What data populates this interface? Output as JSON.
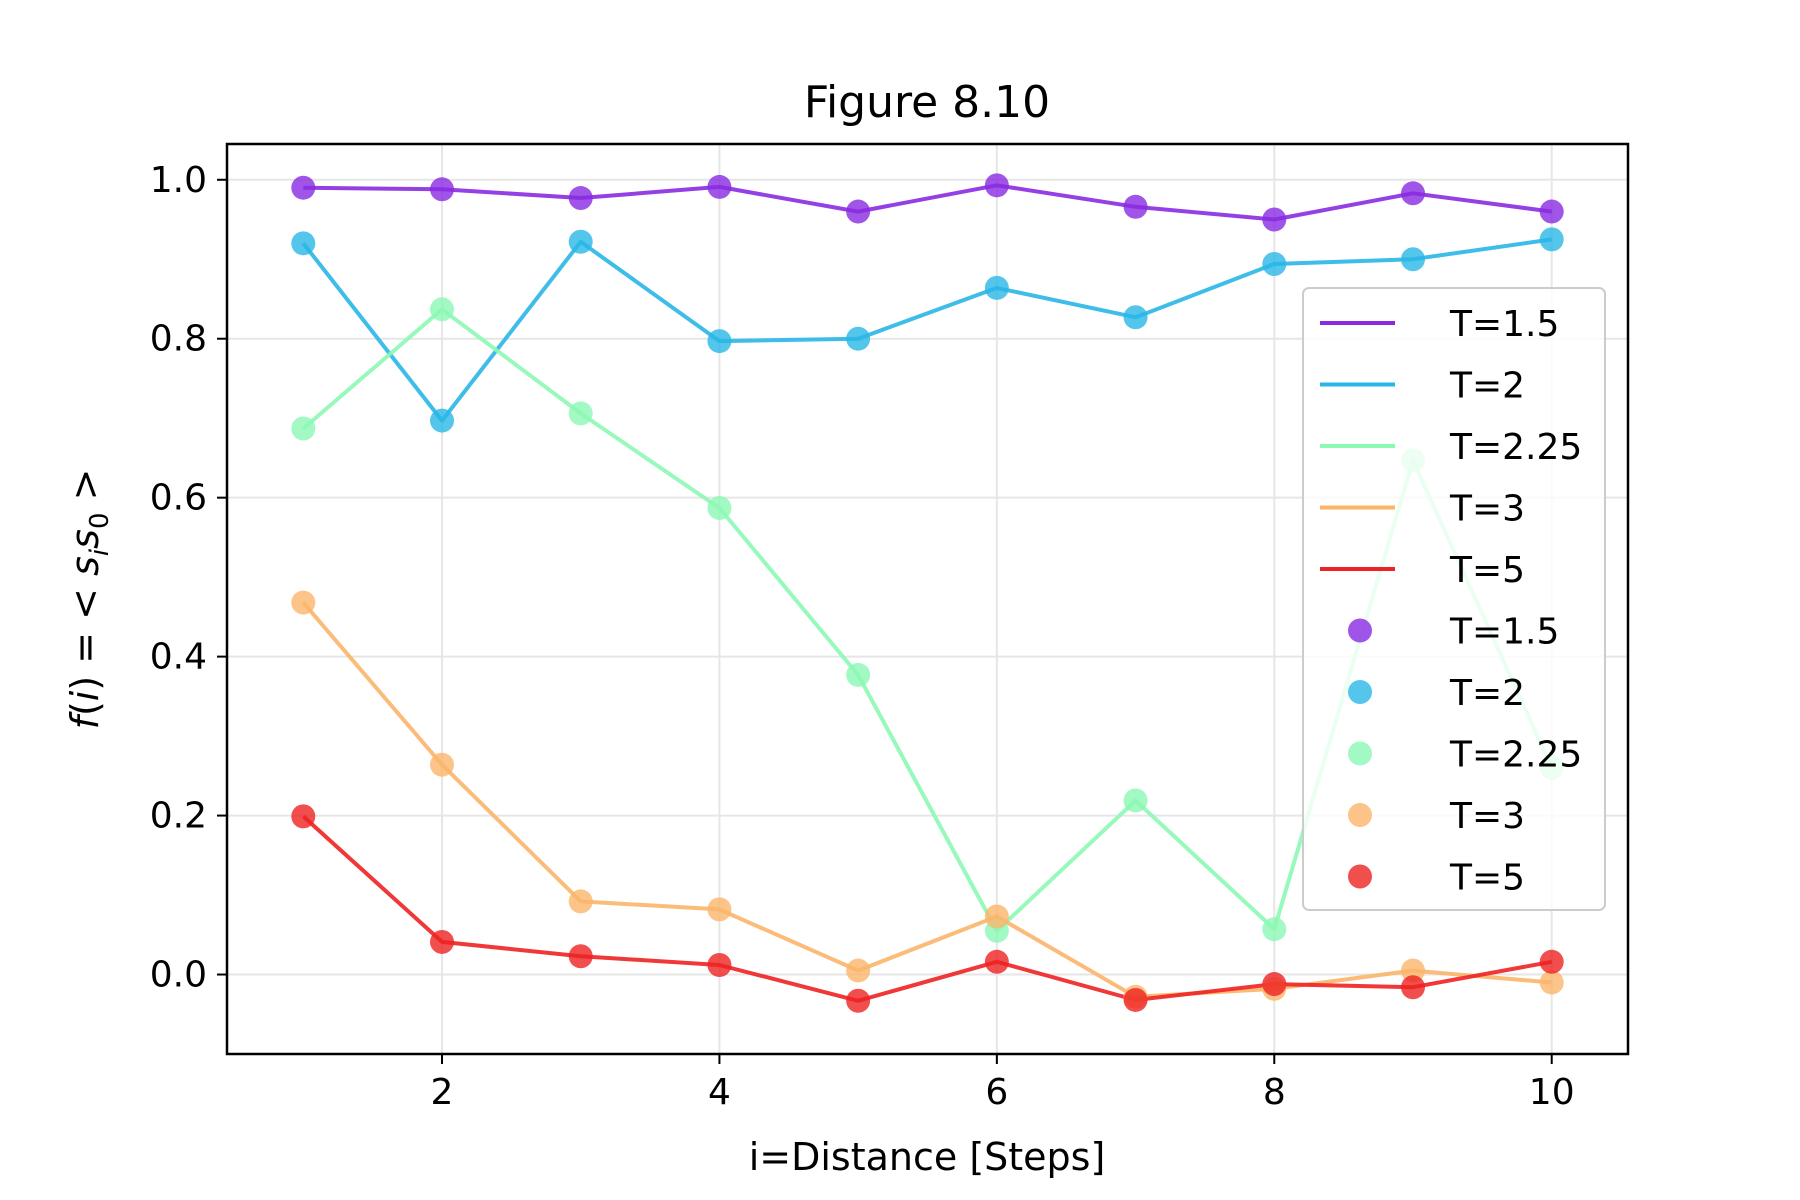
{
  "chart_data": {
    "type": "line",
    "title": "Figure 8.10",
    "xlabel": "i=Distance [Steps]",
    "ylabel": "f(i) = < s_i s_0 >",
    "ylabel_parts": {
      "f": "f",
      "open": "(",
      "i": "i",
      "close": ")",
      "eq": " = < ",
      "s1": "s",
      "sub1": "i",
      "s2": "s",
      "sub2": "0",
      "end": " >"
    },
    "xlim": [
      0.45,
      10.55
    ],
    "ylim": [
      -0.1,
      1.045
    ],
    "xticks": [
      2,
      4,
      6,
      8,
      10
    ],
    "yticks": [
      0.0,
      0.2,
      0.4,
      0.6,
      0.8,
      1.0
    ],
    "ytick_labels": [
      "0.0",
      "0.2",
      "0.4",
      "0.6",
      "0.8",
      "1.0"
    ],
    "grid": true,
    "legend_position": "center-right",
    "x": [
      1,
      2,
      3,
      4,
      5,
      6,
      7,
      8,
      9,
      10
    ],
    "series": [
      {
        "name": "T=1.5",
        "color": "#8a2be2",
        "values": [
          0.99,
          0.988,
          0.977,
          0.991,
          0.96,
          0.993,
          0.966,
          0.95,
          0.983,
          0.96
        ]
      },
      {
        "name": "T=2",
        "color": "#29b6e6",
        "values": [
          0.92,
          0.697,
          0.922,
          0.797,
          0.8,
          0.864,
          0.827,
          0.894,
          0.9,
          0.925
        ]
      },
      {
        "name": "T=2.25",
        "color": "#8cf8b4",
        "values": [
          0.687,
          0.837,
          0.706,
          0.587,
          0.377,
          0.055,
          0.219,
          0.057,
          0.647,
          0.26
        ]
      },
      {
        "name": "T=3",
        "color": "#fbb56a",
        "values": [
          0.468,
          0.264,
          0.092,
          0.082,
          0.005,
          0.073,
          -0.028,
          -0.018,
          0.005,
          -0.01
        ]
      },
      {
        "name": "T=5",
        "color": "#ee2222",
        "values": [
          0.199,
          0.041,
          0.023,
          0.012,
          -0.033,
          0.016,
          -0.032,
          -0.012,
          -0.016,
          0.016
        ]
      }
    ],
    "legend_entries": {
      "lines": [
        "T=1.5",
        "T=2",
        "T=2.25",
        "T=3",
        "T=5"
      ],
      "markers": [
        "T=1.5",
        "T=2",
        "T=2.25",
        "T=3",
        "T=5"
      ]
    }
  }
}
